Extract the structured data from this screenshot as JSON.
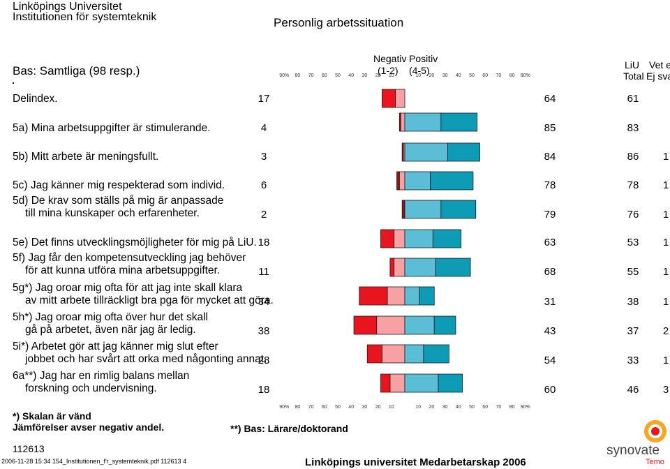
{
  "header": {
    "university": "Linköpings Universitet",
    "department": "Institutionen för systemteknik",
    "title": "Personlig arbetssituation",
    "base": "Bas: Samtliga (98 resp.)"
  },
  "columns": {
    "neg_label": "Negativ",
    "neg_range": "(1-2)",
    "pos_label": "Positiv",
    "pos_range": "(4-5)",
    "liu_label": "LiU",
    "total_label": "Total",
    "vet_label": "Vet ej/",
    "ejsvar_label": "Ej svar"
  },
  "axis_ticks_left": [
    "90%",
    "80",
    "70",
    "60",
    "50",
    "40",
    "30",
    "20",
    "10"
  ],
  "axis_ticks_right": [
    "10",
    "20",
    "30",
    "40",
    "50",
    "60",
    "70",
    "80",
    "90%"
  ],
  "footer": {
    "note1": "*) Skalan är vänd",
    "note2": "Jämförelser avser negativ andel.",
    "note3": "**) Bas: Lärare/doktorand",
    "code": "112613",
    "file_line": "2006-11-28 15:34 154_Institutionen_f'r_systemteknik.pdf 112613  4",
    "survey": "Linköpings universitet Medarbetarskap 2006",
    "logo_text": "synovate",
    "logo_sub": "Temo"
  },
  "colors": {
    "neg_strong": "#e8141e",
    "neg_mild": "#f7a1a5",
    "neg_dark": "#8b1a1a",
    "pos_mild": "#5bbdd6",
    "pos_strong": "#0e9bb5",
    "bar_border": "#1a1a1a"
  },
  "chart_data": {
    "type": "bar",
    "subtype": "diverging-stacked-horizontal",
    "title": "Personlig arbetssituation",
    "axis_range": [
      -90,
      90
    ],
    "axis_unit": "%",
    "legend": [
      "Negativ (1-2)",
      "Positiv (4-5)"
    ],
    "rows": [
      {
        "label": [
          "Delindex."
        ],
        "neg_value": "17",
        "liu_total": "64",
        "vet_ej": "61",
        "ej_svar": "",
        "neg_strong": 10,
        "neg_mild": 7,
        "pos_mild": 0,
        "pos_strong": 0
      },
      {
        "label": [
          "5a) Mina arbetsuppgifter är stimulerande."
        ],
        "neg_value": "4",
        "liu_total": "85",
        "vet_ej": "83",
        "ej_svar": "",
        "neg_strong": 1,
        "neg_mild": 3,
        "pos_mild": 27,
        "pos_strong": 27
      },
      {
        "label": [
          "5b) Mitt arbete är meningsfullt."
        ],
        "neg_value": "3",
        "liu_total": "84",
        "vet_ej": "86",
        "ej_svar": "1",
        "neg_strong": 1,
        "neg_mild": 1,
        "pos_mild": 32,
        "pos_strong": 24
      },
      {
        "label": [
          "5c) Jag känner mig respekterad som individ."
        ],
        "neg_value": "6",
        "liu_total": "78",
        "vet_ej": "78",
        "ej_svar": "1",
        "neg_strong": 2,
        "neg_mild": 4,
        "pos_mild": 19,
        "pos_strong": 32
      },
      {
        "label": [
          "5d) De krav som ställs på mig är anpassade",
          "till mina kunskaper och erfarenheter."
        ],
        "neg_value": "2",
        "liu_total": "79",
        "vet_ej": "76",
        "ej_svar": "1",
        "neg_strong": 2,
        "neg_mild": 0,
        "pos_mild": 27,
        "pos_strong": 26
      },
      {
        "label": [
          "5e) Det finns utvecklingsmöjligheter för mig på LiU."
        ],
        "neg_value": "18",
        "liu_total": "63",
        "vet_ej": "53",
        "ej_svar": "1",
        "neg_strong": 10,
        "neg_mild": 8,
        "pos_mild": 21,
        "pos_strong": 21
      },
      {
        "label": [
          "5f) Jag får den kompetensutveckling jag behöver",
          "för att kunna utföra mina arbetsuppgifter."
        ],
        "neg_value": "11",
        "liu_total": "68",
        "vet_ej": "55",
        "ej_svar": "1",
        "neg_strong": 3,
        "neg_mild": 8,
        "pos_mild": 23,
        "pos_strong": 26
      },
      {
        "label": [
          "5g*) Jag oroar mig ofta för att jag inte skall klara",
          "av mitt arbete tillräckligt bra pga för mycket att göra."
        ],
        "neg_value": "34",
        "liu_total": "31",
        "vet_ej": "38",
        "ej_svar": "1",
        "neg_strong": 21,
        "neg_mild": 13,
        "pos_mild": 11,
        "pos_strong": 11
      },
      {
        "label": [
          "5h*) Jag oroar mig ofta över hur det skall",
          "gå på arbetet, även när jag är ledig."
        ],
        "neg_value": "38",
        "liu_total": "43",
        "vet_ej": "37",
        "ej_svar": "2",
        "neg_strong": 17,
        "neg_mild": 21,
        "pos_mild": 22,
        "pos_strong": 16
      },
      {
        "label": [
          "5i*) Arbetet gör att jag känner mig slut efter",
          "jobbet och har svårt att orka med någonting annat."
        ],
        "neg_value": "28",
        "liu_total": "54",
        "vet_ej": "33",
        "ej_svar": "1",
        "neg_strong": 11,
        "neg_mild": 17,
        "pos_mild": 14,
        "pos_strong": 19
      },
      {
        "label": [
          "6a**) Jag har en rimlig balans mellan",
          "forskning och undervisning."
        ],
        "neg_value": "18",
        "liu_total": "60",
        "vet_ej": "46",
        "ej_svar": "3",
        "neg_strong": 7,
        "neg_mild": 11,
        "pos_mild": 25,
        "pos_strong": 18
      }
    ]
  }
}
